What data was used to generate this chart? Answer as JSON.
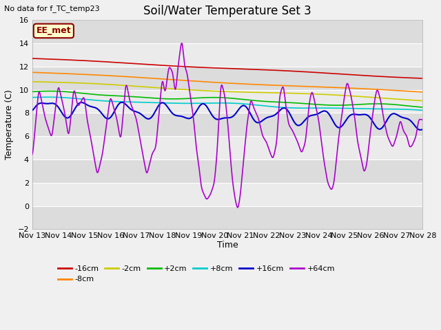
{
  "title": "Soil/Water Temperature Set 3",
  "xlabel": "Time",
  "ylabel": "Temperature (C)",
  "top_left_text": "No data for f_TC_temp23",
  "annotation_box": "EE_met",
  "ylim": [
    -2,
    16
  ],
  "yticks": [
    -2,
    0,
    2,
    4,
    6,
    8,
    10,
    12,
    14,
    16
  ],
  "x_labels": [
    "Nov 13",
    "Nov 14",
    "Nov 15",
    "Nov 16",
    "Nov 17",
    "Nov 18",
    "Nov 19",
    "Nov 20",
    "Nov 21",
    "Nov 22",
    "Nov 23",
    "Nov 24",
    "Nov 25",
    "Nov 26",
    "Nov 27",
    "Nov 28"
  ],
  "series": {
    "-16cm": {
      "color": "#cc0000",
      "lw": 1.2
    },
    "-8cm": {
      "color": "#ff8800",
      "lw": 1.2
    },
    "-2cm": {
      "color": "#cccc00",
      "lw": 1.2
    },
    "+2cm": {
      "color": "#00bb00",
      "lw": 1.2
    },
    "+8cm": {
      "color": "#00cccc",
      "lw": 1.2
    },
    "+16cm": {
      "color": "#0000cc",
      "lw": 1.5
    },
    "+64cm": {
      "color": "#aa00cc",
      "lw": 1.2
    }
  },
  "plot_bg_dark": "#dcdcdc",
  "plot_bg_light": "#ebebeb",
  "grid_color": "#ffffff",
  "title_fontsize": 12,
  "axis_fontsize": 9,
  "tick_fontsize": 8,
  "legend_order": [
    "-16cm",
    "-8cm",
    "-2cm",
    "+2cm",
    "+8cm",
    "+16cm",
    "+64cm"
  ]
}
